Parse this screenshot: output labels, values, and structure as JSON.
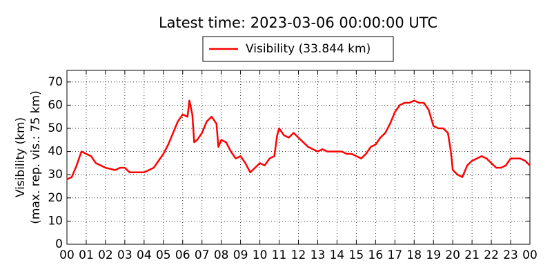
{
  "chart_data": {
    "type": "line",
    "title": "Latest time: 2023-03-06 00:00:00 UTC",
    "ylabel": [
      "Visibility (km)",
      "(max. rep. vis.: 75 km)"
    ],
    "legend": "upper center",
    "grid": true,
    "xlim": [
      0,
      24
    ],
    "ylim": [
      0,
      75
    ],
    "xticks": [
      {
        "value": 0,
        "label": "00"
      },
      {
        "value": 1,
        "label": "01"
      },
      {
        "value": 2,
        "label": "02"
      },
      {
        "value": 3,
        "label": "03"
      },
      {
        "value": 4,
        "label": "04"
      },
      {
        "value": 5,
        "label": "05"
      },
      {
        "value": 6,
        "label": "06"
      },
      {
        "value": 7,
        "label": "07"
      },
      {
        "value": 8,
        "label": "08"
      },
      {
        "value": 9,
        "label": "09"
      },
      {
        "value": 10,
        "label": "10"
      },
      {
        "value": 11,
        "label": "11"
      },
      {
        "value": 12,
        "label": "12"
      },
      {
        "value": 13,
        "label": "13"
      },
      {
        "value": 14,
        "label": "14"
      },
      {
        "value": 15,
        "label": "15"
      },
      {
        "value": 16,
        "label": "16"
      },
      {
        "value": 17,
        "label": "17"
      },
      {
        "value": 18,
        "label": "18"
      },
      {
        "value": 19,
        "label": "19"
      },
      {
        "value": 20,
        "label": "20"
      },
      {
        "value": 21,
        "label": "21"
      },
      {
        "value": 22,
        "label": "22"
      },
      {
        "value": 23,
        "label": "23"
      },
      {
        "value": 24,
        "label": "00"
      }
    ],
    "yticks": [
      0,
      10,
      20,
      30,
      40,
      50,
      60,
      70
    ],
    "x": [
      0,
      0.25,
      0.5,
      0.75,
      1,
      1.25,
      1.5,
      1.75,
      2,
      2.25,
      2.5,
      2.75,
      3,
      3.25,
      3.5,
      3.75,
      4,
      4.25,
      4.5,
      4.75,
      5,
      5.25,
      5.5,
      5.75,
      6,
      6.25,
      6.35,
      6.5,
      6.6,
      6.75,
      7,
      7.25,
      7.5,
      7.75,
      7.85,
      8,
      8.25,
      8.5,
      8.75,
      9,
      9.25,
      9.5,
      9.75,
      10,
      10.25,
      10.5,
      10.75,
      10.9,
      11,
      11.25,
      11.5,
      11.75,
      12,
      12.25,
      12.5,
      12.75,
      13,
      13.25,
      13.5,
      13.75,
      14,
      14.25,
      14.5,
      14.75,
      15,
      15.25,
      15.5,
      15.75,
      16,
      16.25,
      16.5,
      16.75,
      17,
      17.25,
      17.5,
      17.75,
      18,
      18.25,
      18.5,
      18.75,
      19,
      19.25,
      19.5,
      19.75,
      19.9,
      20,
      20.25,
      20.5,
      20.75,
      21,
      21.25,
      21.5,
      21.75,
      22,
      22.25,
      22.5,
      22.75,
      23,
      23.25,
      23.5,
      23.75,
      24
    ],
    "series": [
      {
        "name": "Visibility (33.844 km)",
        "color": "#ff0000",
        "values": [
          28,
          29,
          34,
          40,
          39,
          38,
          35,
          34,
          33,
          32.5,
          32,
          33,
          33,
          31,
          31,
          31,
          31,
          32,
          33,
          36,
          39,
          43,
          48,
          53,
          56,
          55,
          62,
          56,
          44,
          45,
          48,
          53,
          55,
          52,
          42,
          45,
          44,
          40,
          37,
          38,
          35,
          31,
          33,
          35,
          34,
          37,
          38,
          47,
          50,
          47,
          46,
          48,
          46,
          44,
          42,
          41,
          40,
          41,
          40,
          40,
          40,
          40,
          39,
          39,
          38,
          37,
          39,
          42,
          43,
          46,
          48,
          52,
          57,
          60,
          61,
          61,
          62,
          61,
          61,
          58,
          51,
          50,
          50,
          48,
          40,
          32,
          30,
          29,
          34,
          36,
          37,
          38,
          37,
          35,
          33,
          33,
          34,
          37,
          37,
          37,
          36,
          34
        ]
      }
    ]
  }
}
